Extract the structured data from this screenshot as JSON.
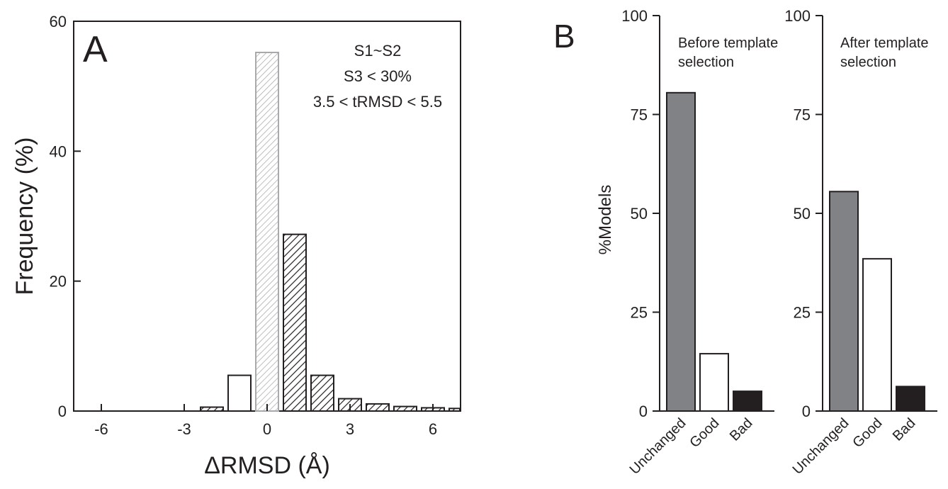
{
  "panels": {
    "a": {
      "letter": "A"
    },
    "b": {
      "letter": "B"
    }
  },
  "colors": {
    "axis": "#231f20",
    "hatch_light": "#a7a9ac",
    "hatch_dark": "#231f20",
    "unchanged": "#808285",
    "good": "#ffffff",
    "bad": "#231f20"
  },
  "chart_data": [
    {
      "type": "bar",
      "panel": "A",
      "xlabel": "ΔRMSD (Å)",
      "ylabel": "Frequency (%)",
      "xlim": [
        -7,
        7
      ],
      "ylim": [
        0,
        60
      ],
      "xticks": [
        -6,
        -3,
        0,
        3,
        6
      ],
      "yticks": [
        0,
        20,
        40,
        60
      ],
      "annotation": [
        "S1~S2",
        "S3 < 30%",
        "3.5 < tRMSD < 5.5"
      ],
      "grid": false,
      "bin_width": 1,
      "bars": [
        {
          "x": -2,
          "value": 0.6,
          "style": "hatch-dark"
        },
        {
          "x": -1,
          "value": 5.5,
          "style": "plain"
        },
        {
          "x": 0,
          "value": 55.2,
          "style": "hatch-light"
        },
        {
          "x": 1,
          "value": 27.2,
          "style": "hatch-dark"
        },
        {
          "x": 2,
          "value": 5.5,
          "style": "hatch-dark"
        },
        {
          "x": 3,
          "value": 1.9,
          "style": "hatch-dark"
        },
        {
          "x": 4,
          "value": 1.1,
          "style": "hatch-dark"
        },
        {
          "x": 5,
          "value": 0.7,
          "style": "hatch-dark"
        },
        {
          "x": 6,
          "value": 0.5,
          "style": "hatch-dark"
        },
        {
          "x": 7,
          "value": 0.4,
          "style": "hatch-dark"
        }
      ]
    },
    {
      "type": "bar",
      "panel": "B",
      "title": "Before template selection",
      "title_lines": [
        "Before template",
        "selection"
      ],
      "ylabel": "%Models",
      "ylim": [
        0,
        100
      ],
      "yticks": [
        0,
        25,
        50,
        75,
        100
      ],
      "categories": [
        "Unchanged",
        "Good",
        "Bad"
      ],
      "values": [
        80.5,
        14.5,
        5.0
      ]
    },
    {
      "type": "bar",
      "panel": "B",
      "title": "After template selection",
      "title_lines": [
        "After template",
        "selection"
      ],
      "ylim": [
        0,
        100
      ],
      "yticks": [
        0,
        25,
        50,
        75,
        100
      ],
      "categories": [
        "Unchanged",
        "Good",
        "Bad"
      ],
      "values": [
        55.5,
        38.5,
        6.2
      ]
    }
  ]
}
